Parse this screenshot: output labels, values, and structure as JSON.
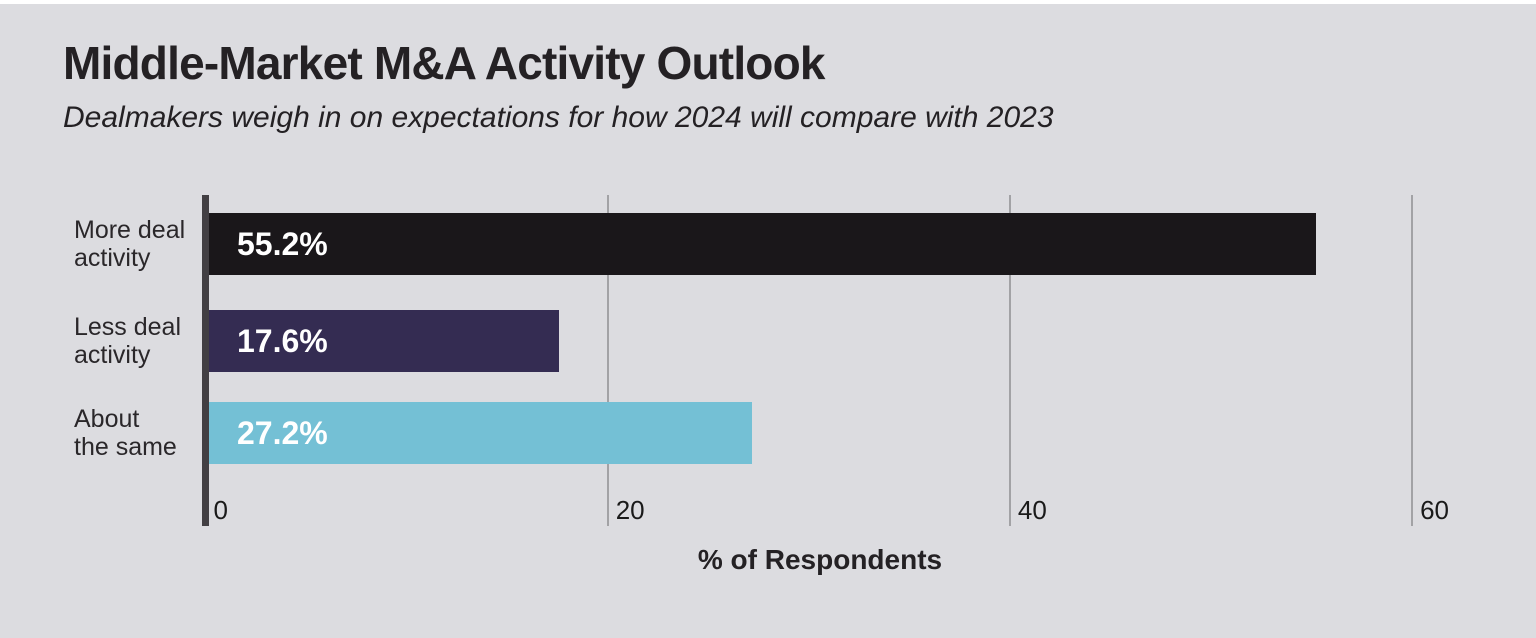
{
  "chart_data": {
    "type": "bar",
    "orientation": "horizontal",
    "title": "Middle-Market M&A Activity Outlook",
    "subtitle": "Dealmakers weigh in on expectations for how 2024 will compare with 2023",
    "categories": [
      "More deal activity",
      "Less deal activity",
      "About the same"
    ],
    "category_lines": [
      [
        "More deal",
        "activity"
      ],
      [
        "Less deal",
        "activity"
      ],
      [
        "About",
        "the same"
      ]
    ],
    "values": [
      55.2,
      17.6,
      27.2
    ],
    "value_labels": [
      "55.2%",
      "17.6%",
      "27.2%"
    ],
    "bar_colors": [
      "#1a171a",
      "#342c52",
      "#74c0d5"
    ],
    "xlabel": "% of Respondents",
    "xlim": [
      0,
      60
    ],
    "xticks": [
      "0",
      "20",
      "40",
      "60"
    ],
    "grid": true,
    "legend": false
  },
  "colors": {
    "background": "#dcdce0",
    "title_text": "#242124",
    "value_label_text": "#ffffff",
    "axis_line": "#423f43",
    "gridline": "#a2a2a5",
    "tick_text": "#1a1a1a"
  }
}
